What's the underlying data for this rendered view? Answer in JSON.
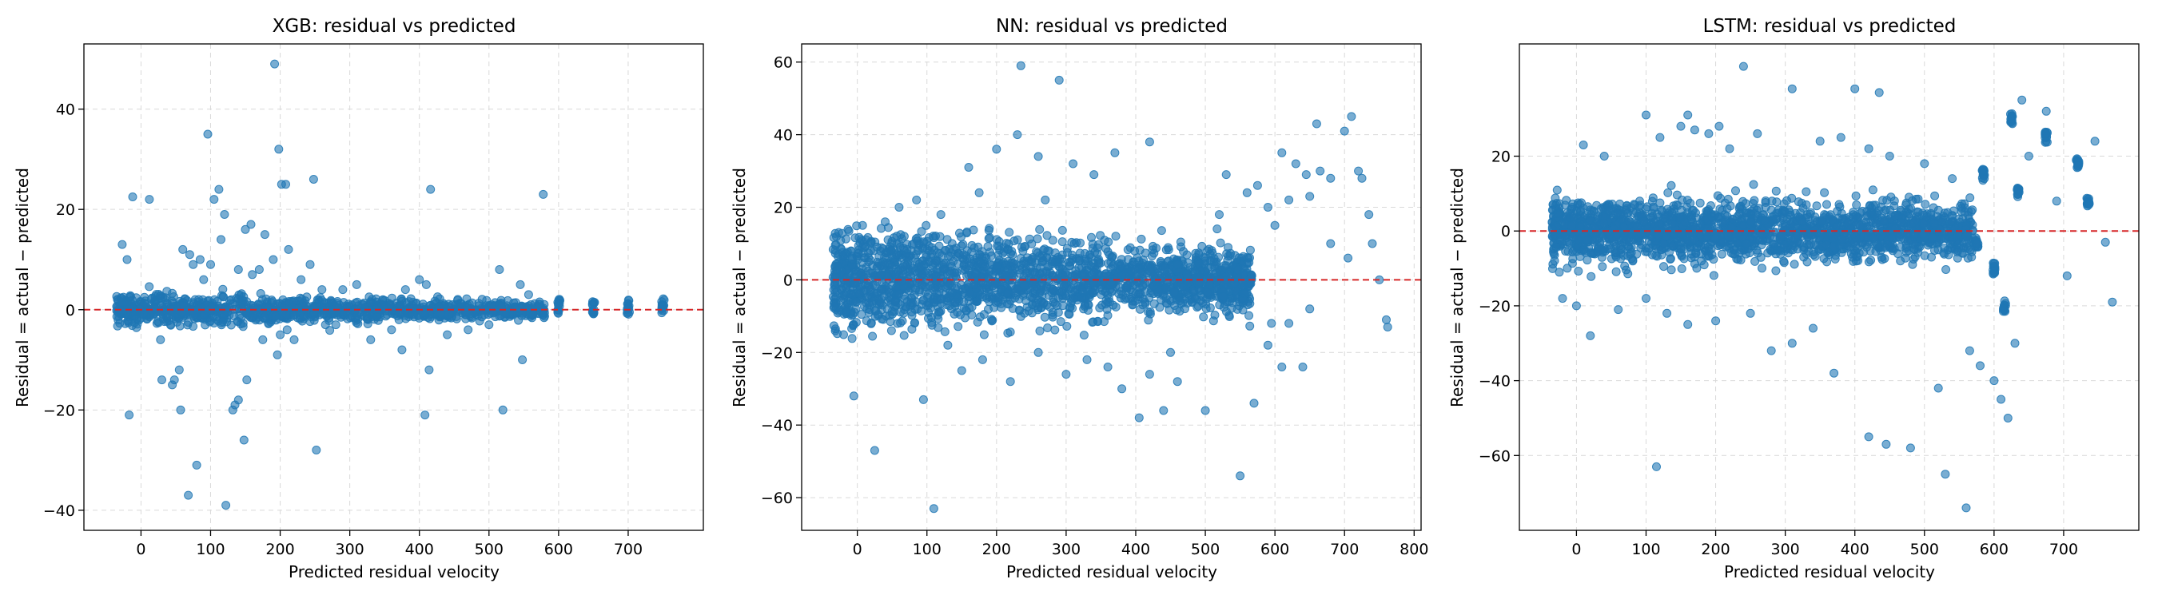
{
  "colors": {
    "points": "#1f77b4",
    "zero_line": "#d62728",
    "grid": "#d9d9d9",
    "axes": "#000000"
  },
  "chart_data": [
    {
      "type": "scatter",
      "title": "XGB: residual vs predicted",
      "xlabel": "Predicted residual velocity",
      "ylabel": "Residual = actual − predicted",
      "xlim": [
        -82,
        808
      ],
      "ylim": [
        -44,
        53
      ],
      "xticks": [
        0,
        100,
        200,
        300,
        400,
        500,
        600,
        700
      ],
      "yticks": [
        -40,
        -20,
        0,
        20,
        40
      ],
      "grid": true,
      "reference_line": {
        "y": 0,
        "style": "dashed"
      },
      "band": {
        "x_min": -35,
        "x_max": 580,
        "sd_near": 2.2,
        "sd_far": 1.2,
        "count": 1100
      },
      "columns": [
        [
          600,
          0.6
        ],
        [
          650,
          0.5
        ],
        [
          700,
          0.5
        ],
        [
          750,
          0.7
        ]
      ],
      "points": [
        [
          -27,
          13
        ],
        [
          -20,
          10
        ],
        [
          -12,
          22.5
        ],
        [
          12,
          22
        ],
        [
          -17,
          -21
        ],
        [
          28,
          -6
        ],
        [
          30,
          -14
        ],
        [
          48,
          -14
        ],
        [
          55,
          -12
        ],
        [
          57,
          -20
        ],
        [
          45,
          -15
        ],
        [
          68,
          -37
        ],
        [
          80,
          -31
        ],
        [
          90,
          6
        ],
        [
          96,
          35
        ],
        [
          105,
          22
        ],
        [
          112,
          24
        ],
        [
          120,
          19
        ],
        [
          132,
          -20
        ],
        [
          140,
          -18
        ],
        [
          148,
          -26
        ],
        [
          152,
          -14
        ],
        [
          150,
          16
        ],
        [
          158,
          17
        ],
        [
          170,
          8
        ],
        [
          178,
          15
        ],
        [
          192,
          49
        ],
        [
          198,
          32
        ],
        [
          202,
          25
        ],
        [
          208,
          25
        ],
        [
          212,
          12
        ],
        [
          196,
          -9
        ],
        [
          200,
          -5
        ],
        [
          210,
          -4
        ],
        [
          220,
          -6
        ],
        [
          248,
          26
        ],
        [
          252,
          -28
        ],
        [
          260,
          4
        ],
        [
          265,
          -3
        ],
        [
          290,
          4
        ],
        [
          310,
          5
        ],
        [
          330,
          -6
        ],
        [
          360,
          -4
        ],
        [
          375,
          -8
        ],
        [
          380,
          4
        ],
        [
          400,
          6
        ],
        [
          410,
          5
        ],
        [
          416,
          24
        ],
        [
          414,
          -12
        ],
        [
          408,
          -21
        ],
        [
          440,
          -5
        ],
        [
          470,
          -4
        ],
        [
          500,
          -3
        ],
        [
          515,
          8
        ],
        [
          520,
          -20
        ],
        [
          545,
          5
        ],
        [
          548,
          -10
        ],
        [
          557,
          3
        ],
        [
          578,
          23
        ],
        [
          115,
          14
        ],
        [
          122,
          -39
        ],
        [
          135,
          -19
        ],
        [
          70,
          11
        ],
        [
          60,
          12
        ],
        [
          75,
          9
        ],
        [
          85,
          10
        ],
        [
          160,
          7
        ],
        [
          175,
          -6
        ],
        [
          190,
          10
        ],
        [
          140,
          8
        ],
        [
          100,
          9
        ],
        [
          230,
          6
        ],
        [
          243,
          9
        ],
        [
          280,
          -3
        ]
      ]
    },
    {
      "type": "scatter",
      "title": "NN: residual vs predicted",
      "xlabel": "Predicted residual velocity",
      "ylabel": "Residual = actual − predicted",
      "xlim": [
        -80,
        810
      ],
      "ylim": [
        -69,
        65
      ],
      "xticks": [
        0,
        100,
        200,
        300,
        400,
        500,
        600,
        700,
        800
      ],
      "yticks": [
        -60,
        -40,
        -20,
        0,
        20,
        40,
        60
      ],
      "grid": true,
      "reference_line": {
        "y": 0,
        "style": "dashed"
      },
      "band": {
        "x_min": -35,
        "x_max": 565,
        "sd_near": 9,
        "sd_far": 6,
        "count": 2000
      },
      "columns": [
        [
          460,
          4
        ],
        [
          475,
          1
        ],
        [
          490,
          0
        ],
        [
          505,
          -2
        ],
        [
          525,
          -4
        ],
        [
          545,
          2
        ],
        [
          555,
          -5
        ],
        [
          565,
          0
        ]
      ],
      "points": [
        [
          25,
          -47
        ],
        [
          110,
          -63
        ],
        [
          235,
          59
        ],
        [
          290,
          55
        ],
        [
          -5,
          -32
        ],
        [
          95,
          -33
        ],
        [
          160,
          31
        ],
        [
          200,
          36
        ],
        [
          230,
          40
        ],
        [
          260,
          34
        ],
        [
          310,
          32
        ],
        [
          340,
          29
        ],
        [
          370,
          35
        ],
        [
          420,
          38
        ],
        [
          380,
          -30
        ],
        [
          405,
          -38
        ],
        [
          440,
          -36
        ],
        [
          460,
          -28
        ],
        [
          500,
          -36
        ],
        [
          550,
          -54
        ],
        [
          570,
          -34
        ],
        [
          590,
          -18
        ],
        [
          610,
          -24
        ],
        [
          640,
          -24
        ],
        [
          645,
          29
        ],
        [
          610,
          35
        ],
        [
          630,
          32
        ],
        [
          660,
          43
        ],
        [
          665,
          30
        ],
        [
          680,
          28
        ],
        [
          700,
          41
        ],
        [
          710,
          45
        ],
        [
          720,
          30
        ],
        [
          725,
          28
        ],
        [
          735,
          18
        ],
        [
          740,
          10
        ],
        [
          750,
          0
        ],
        [
          760,
          -11
        ],
        [
          762,
          -13
        ],
        [
          620,
          22
        ],
        [
          650,
          23
        ],
        [
          680,
          10
        ],
        [
          705,
          6
        ],
        [
          600,
          15
        ],
        [
          590,
          20
        ],
        [
          575,
          26
        ],
        [
          560,
          24
        ],
        [
          520,
          18
        ],
        [
          530,
          29
        ],
        [
          595,
          -12
        ],
        [
          620,
          -12
        ],
        [
          650,
          -8
        ],
        [
          150,
          -25
        ],
        [
          180,
          -22
        ],
        [
          130,
          -18
        ],
        [
          220,
          -28
        ],
        [
          260,
          -20
        ],
        [
          300,
          -26
        ],
        [
          330,
          -22
        ],
        [
          360,
          -24
        ],
        [
          420,
          -26
        ],
        [
          450,
          -20
        ],
        [
          60,
          20
        ],
        [
          40,
          16
        ],
        [
          85,
          22
        ],
        [
          120,
          18
        ],
        [
          175,
          24
        ],
        [
          270,
          22
        ]
      ]
    },
    {
      "type": "scatter",
      "title": "LSTM: residual vs predicted",
      "xlabel": "Predicted residual velocity",
      "ylabel": "Residual = actual − predicted",
      "xlim": [
        -82,
        808
      ],
      "ylim": [
        -80,
        50
      ],
      "xticks": [
        0,
        100,
        200,
        300,
        400,
        500,
        600,
        700
      ],
      "yticks": [
        -60,
        -40,
        -20,
        0,
        20
      ],
      "grid": true,
      "reference_line": {
        "y": 0,
        "style": "dashed"
      },
      "band": {
        "x_min": -35,
        "x_max": 570,
        "sd_near": 6,
        "sd_far": 5,
        "count": 2000
      },
      "columns": [
        [
          560,
          0
        ],
        [
          575,
          -3
        ],
        [
          585,
          15
        ],
        [
          600,
          -10
        ],
        [
          615,
          -20
        ],
        [
          625,
          30
        ],
        [
          635,
          10
        ],
        [
          675,
          25
        ],
        [
          720,
          18
        ],
        [
          735,
          8
        ]
      ],
      "points": [
        [
          240,
          44
        ],
        [
          115,
          -63
        ],
        [
          445,
          -57
        ],
        [
          420,
          -55
        ],
        [
          480,
          -58
        ],
        [
          530,
          -65
        ],
        [
          560,
          -74
        ],
        [
          310,
          38
        ],
        [
          400,
          38
        ],
        [
          435,
          37
        ],
        [
          675,
          32
        ],
        [
          640,
          35
        ],
        [
          600,
          -40
        ],
        [
          610,
          -45
        ],
        [
          620,
          -50
        ],
        [
          565,
          -32
        ],
        [
          580,
          -36
        ],
        [
          630,
          -30
        ],
        [
          650,
          20
        ],
        [
          690,
          8
        ],
        [
          705,
          -12
        ],
        [
          745,
          24
        ],
        [
          760,
          -3
        ],
        [
          770,
          -19
        ],
        [
          520,
          -42
        ],
        [
          370,
          -38
        ],
        [
          340,
          -26
        ],
        [
          310,
          -30
        ],
        [
          280,
          -32
        ],
        [
          250,
          -22
        ],
        [
          200,
          -24
        ],
        [
          160,
          -25
        ],
        [
          130,
          -22
        ],
        [
          100,
          -18
        ],
        [
          60,
          -21
        ],
        [
          20,
          -28
        ],
        [
          0,
          -20
        ],
        [
          -20,
          -18
        ],
        [
          10,
          23
        ],
        [
          40,
          20
        ],
        [
          100,
          31
        ],
        [
          120,
          25
        ],
        [
          150,
          28
        ],
        [
          160,
          31
        ],
        [
          170,
          27
        ],
        [
          190,
          26
        ],
        [
          205,
          28
        ],
        [
          220,
          22
        ],
        [
          260,
          26
        ],
        [
          350,
          24
        ],
        [
          380,
          25
        ],
        [
          420,
          22
        ],
        [
          450,
          20
        ],
        [
          500,
          18
        ],
        [
          540,
          14
        ]
      ]
    }
  ]
}
